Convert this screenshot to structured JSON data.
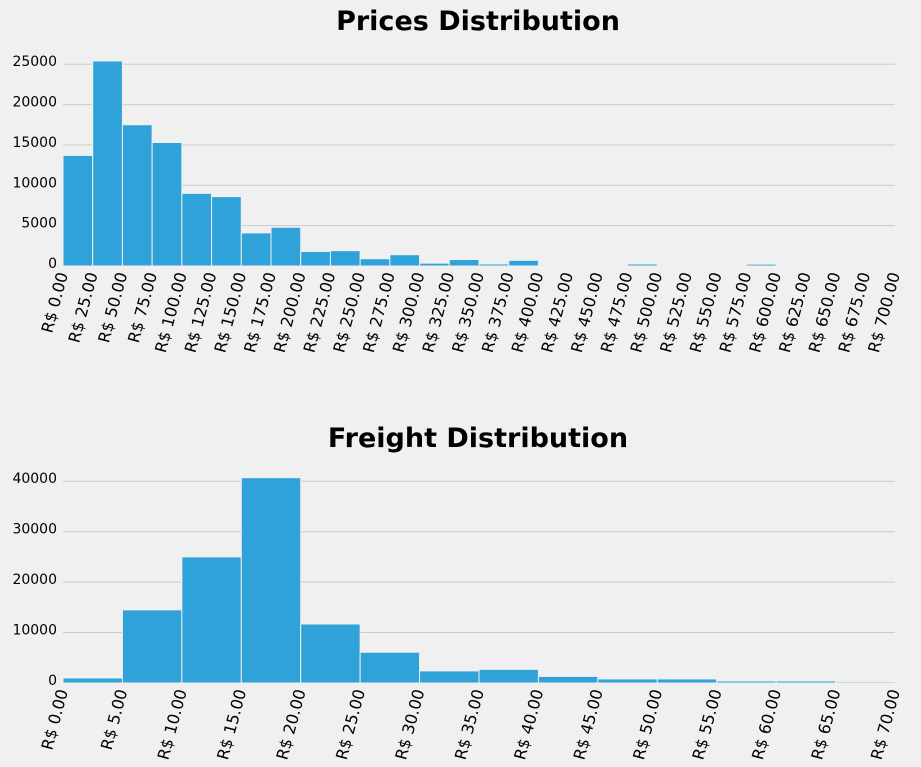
{
  "chart_data": [
    {
      "type": "bar",
      "title": "Prices Distribution",
      "xlabel": "",
      "ylabel": "",
      "bin_edges": [
        0,
        25,
        50,
        75,
        100,
        125,
        150,
        175,
        200,
        225,
        250,
        275,
        300,
        325,
        350,
        375,
        400,
        425,
        450,
        475,
        500,
        525,
        550,
        575,
        600,
        625,
        650,
        675,
        700
      ],
      "values": [
        13700,
        25400,
        17500,
        15300,
        9000,
        8600,
        4100,
        4800,
        1800,
        1900,
        900,
        1400,
        350,
        800,
        250,
        700,
        130,
        120,
        20,
        250,
        20,
        100,
        20,
        230,
        20,
        20,
        20,
        100
      ],
      "xlim": [
        0,
        700
      ],
      "ylim": [
        0,
        28000
      ],
      "yticks": [
        0,
        5000,
        10000,
        15000,
        20000,
        25000
      ],
      "xtick_labels": [
        "R$ 0.00",
        "R$ 25.00",
        "R$ 50.00",
        "R$ 75.00",
        "R$ 100.00",
        "R$ 125.00",
        "R$ 150.00",
        "R$ 175.00",
        "R$ 200.00",
        "R$ 225.00",
        "R$ 250.00",
        "R$ 275.00",
        "R$ 300.00",
        "R$ 325.00",
        "R$ 350.00",
        "R$ 375.00",
        "R$ 400.00",
        "R$ 425.00",
        "R$ 450.00",
        "R$ 475.00",
        "R$ 500.00",
        "R$ 525.00",
        "R$ 550.00",
        "R$ 575.00",
        "R$ 600.00",
        "R$ 625.00",
        "R$ 650.00",
        "R$ 675.00",
        "R$ 700.00"
      ],
      "grid": true
    },
    {
      "type": "bar",
      "title": "Freight Distribution",
      "xlabel": "",
      "ylabel": "",
      "bin_edges": [
        0,
        5,
        10,
        15,
        20,
        25,
        30,
        35,
        40,
        45,
        50,
        55,
        60,
        65,
        70
      ],
      "values": [
        1000,
        14500,
        25000,
        40700,
        11700,
        6100,
        2400,
        2700,
        1300,
        800,
        800,
        400,
        400,
        250
      ],
      "xlim": [
        0,
        70
      ],
      "ylim": [
        0,
        45000
      ],
      "yticks": [
        0,
        10000,
        20000,
        30000,
        40000
      ],
      "xtick_labels": [
        "R$ 0.00",
        "R$ 5.00",
        "R$ 10.00",
        "R$ 15.00",
        "R$ 20.00",
        "R$ 25.00",
        "R$ 30.00",
        "R$ 35.00",
        "R$ 40.00",
        "R$ 45.00",
        "R$ 50.00",
        "R$ 55.00",
        "R$ 60.00",
        "R$ 65.00",
        "R$ 70.00"
      ],
      "grid": true
    }
  ],
  "colors": {
    "bar": "#30a2da",
    "grid": "#cbcbcb",
    "background": "#f0f0f0"
  }
}
